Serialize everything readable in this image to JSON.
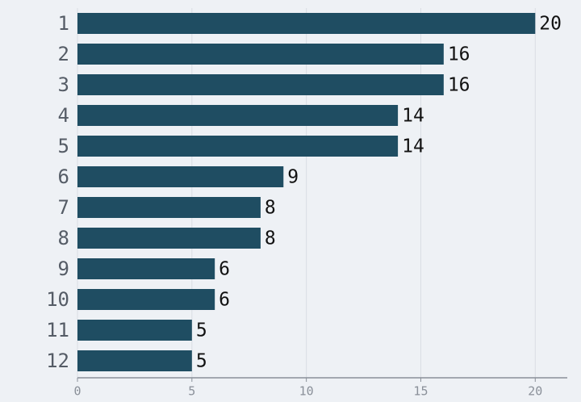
{
  "chart_data": {
    "type": "bar",
    "orientation": "horizontal",
    "categories": [
      "1",
      "2",
      "3",
      "4",
      "5",
      "6",
      "7",
      "8",
      "9",
      "10",
      "11",
      "12"
    ],
    "values": [
      20,
      16,
      16,
      14,
      14,
      9,
      8,
      8,
      6,
      6,
      5,
      5
    ],
    "color": "#1f4d62",
    "xlim": [
      0,
      21.4
    ],
    "xticks": [
      0,
      5,
      10,
      15,
      20
    ],
    "grid": true
  }
}
